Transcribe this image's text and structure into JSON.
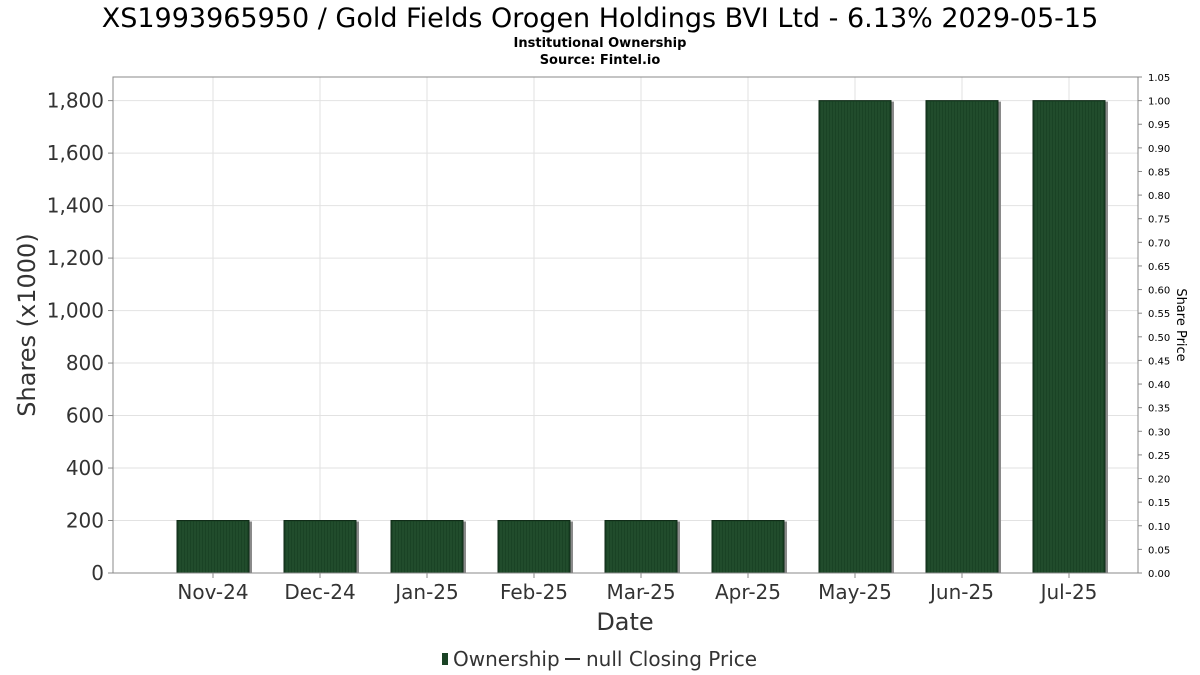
{
  "chart_data": {
    "type": "bar",
    "title": "XS1993965950 / Gold Fields Orogen Holdings BVI Ltd - 6.13% 2029-05-15",
    "subtitle": "Institutional Ownership",
    "source": "Source: Fintel.io",
    "xlabel": "Date",
    "ylabel": "Shares (x1000)",
    "y2label": "Share Price",
    "ylim": [
      0,
      1890
    ],
    "y2lim": [
      0,
      1.05
    ],
    "yticks": [
      "0",
      "200",
      "400",
      "600",
      "800",
      "1,000",
      "1,200",
      "1,400",
      "1,600",
      "1,800"
    ],
    "y2ticks": [
      "0.00",
      "0.05",
      "0.10",
      "0.15",
      "0.20",
      "0.25",
      "0.30",
      "0.35",
      "0.40",
      "0.45",
      "0.50",
      "0.55",
      "0.60",
      "0.65",
      "0.70",
      "0.75",
      "0.80",
      "0.85",
      "0.90",
      "0.95",
      "1.00",
      "1.05"
    ],
    "categories": [
      "Nov-24",
      "Dec-24",
      "Jan-25",
      "Feb-25",
      "Mar-25",
      "Apr-25",
      "May-25",
      "Jun-25",
      "Jul-25"
    ],
    "series": [
      {
        "name": "Ownership",
        "color": "#1a4325",
        "values": [
          200,
          200,
          200,
          200,
          200,
          200,
          1800,
          1800,
          1800
        ]
      }
    ],
    "legend": {
      "position": "bottom",
      "items": [
        "Ownership",
        "null Closing Price"
      ]
    },
    "grid": true
  }
}
